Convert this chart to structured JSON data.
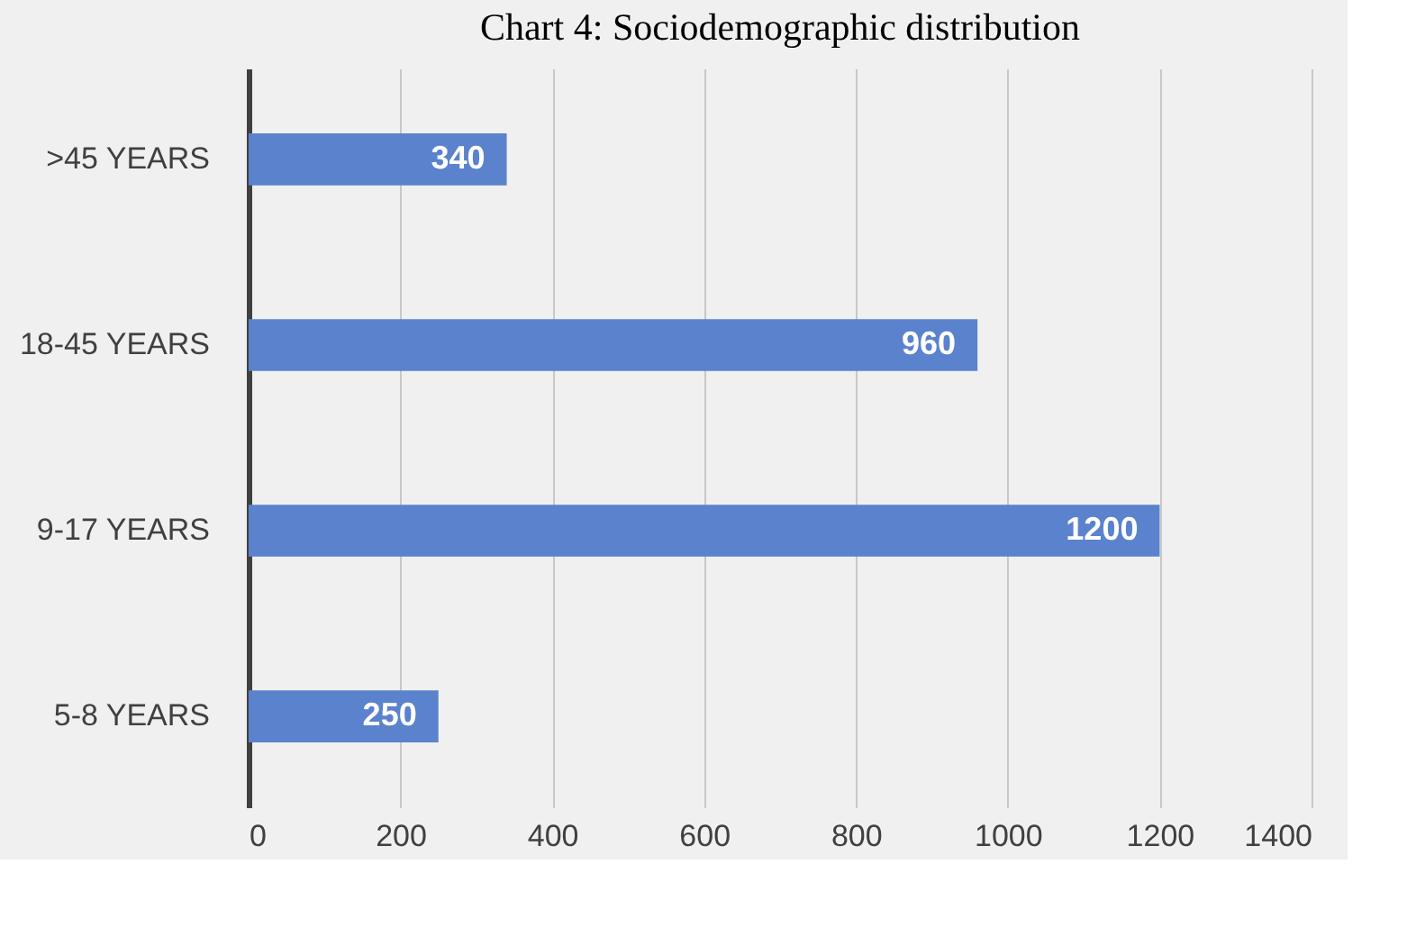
{
  "chart_data": {
    "type": "bar",
    "orientation": "horizontal",
    "title": "Chart 4: Sociodemographic distribution",
    "categories": [
      ">45 YEARS",
      "18-45 YEARS",
      "9-17 YEARS",
      "5-8 YEARS"
    ],
    "values": [
      340,
      960,
      1200,
      250
    ],
    "color": "#5b82cc",
    "data_labels": true,
    "xlim": [
      0,
      1400
    ],
    "xticks": [
      0,
      200,
      400,
      600,
      800,
      1000,
      1200,
      1400
    ],
    "grid": "x"
  }
}
